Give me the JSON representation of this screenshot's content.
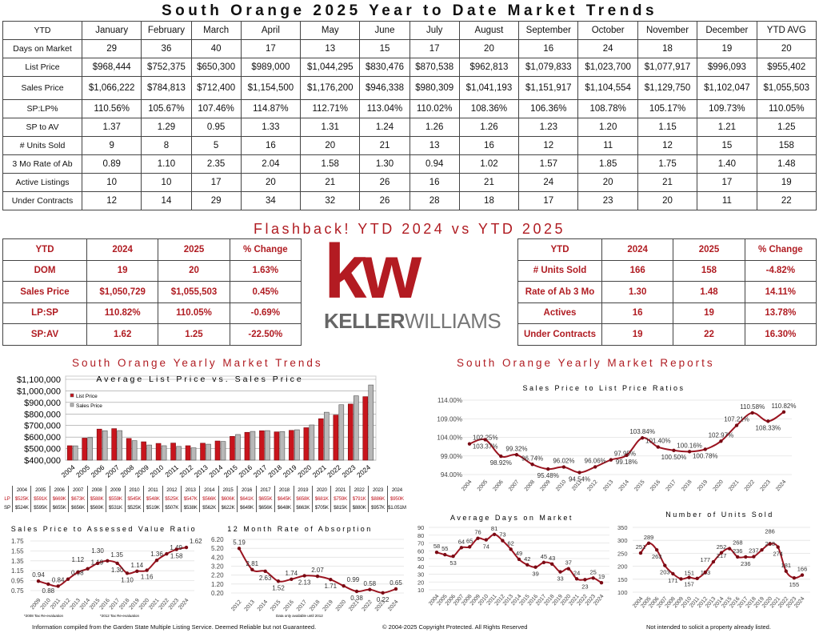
{
  "title": "South Orange 2025 Year to Date Market Trends",
  "main_table": {
    "header": [
      "YTD",
      "January",
      "February",
      "March",
      "April",
      "May",
      "June",
      "July",
      "August",
      "September",
      "October",
      "November",
      "December",
      "YTD AVG"
    ],
    "rows": [
      [
        "Days on Market",
        "29",
        "36",
        "40",
        "17",
        "13",
        "15",
        "17",
        "20",
        "16",
        "24",
        "18",
        "19",
        "20"
      ],
      [
        "List Price",
        "$968,444",
        "$752,375",
        "$650,300",
        "$989,000",
        "$1,044,295",
        "$830,476",
        "$870,538",
        "$962,813",
        "$1,079,833",
        "$1,023,700",
        "$1,077,917",
        "$996,093",
        "$955,402"
      ],
      [
        "Sales Price",
        "$1,066,222",
        "$784,813",
        "$712,400",
        "$1,154,500",
        "$1,176,200",
        "$946,338",
        "$980,309",
        "$1,041,193",
        "$1,151,917",
        "$1,104,554",
        "$1,129,750",
        "$1,102,047",
        "$1,055,503"
      ],
      [
        "SP:LP%",
        "110.56%",
        "105.67%",
        "107.46%",
        "114.87%",
        "112.71%",
        "113.04%",
        "110.02%",
        "108.36%",
        "106.36%",
        "108.78%",
        "105.17%",
        "109.73%",
        "110.05%"
      ],
      [
        "SP to AV",
        "1.37",
        "1.29",
        "0.95",
        "1.33",
        "1.31",
        "1.24",
        "1.26",
        "1.26",
        "1.23",
        "1.20",
        "1.15",
        "1.21",
        "1.25"
      ],
      [
        "# Units Sold",
        "9",
        "8",
        "5",
        "16",
        "20",
        "21",
        "13",
        "16",
        "12",
        "11",
        "12",
        "15",
        "158"
      ],
      [
        "3 Mo Rate of Ab",
        "0.89",
        "1.10",
        "2.35",
        "2.04",
        "1.58",
        "1.30",
        "0.94",
        "1.02",
        "1.57",
        "1.85",
        "1.75",
        "1.40",
        "1.48"
      ],
      [
        "Active Listings",
        "10",
        "10",
        "17",
        "20",
        "21",
        "26",
        "16",
        "21",
        "24",
        "20",
        "21",
        "17",
        "19"
      ],
      [
        "Under Contracts",
        "12",
        "14",
        "29",
        "34",
        "32",
        "26",
        "28",
        "18",
        "17",
        "23",
        "20",
        "11",
        "22"
      ]
    ]
  },
  "flashback_title": "Flashback!  YTD 2024 vs YTD 2025",
  "compare_left": {
    "header": [
      "YTD",
      "2024",
      "2025",
      "% Change"
    ],
    "rows": [
      [
        "DOM",
        "19",
        "20",
        "1.63%"
      ],
      [
        "Sales Price",
        "$1,050,729",
        "$1,055,503",
        "0.45%"
      ],
      [
        "LP:SP",
        "110.82%",
        "110.05%",
        "-0.69%"
      ],
      [
        "SP:AV",
        "1.62",
        "1.25",
        "-22.50%"
      ]
    ]
  },
  "compare_right": {
    "header": [
      "YTD",
      "2024",
      "2025",
      "% Change"
    ],
    "rows": [
      [
        "# Units Sold",
        "166",
        "158",
        "-4.82%"
      ],
      [
        "Rate of Ab 3 Mo",
        "1.30",
        "1.48",
        "14.11%"
      ],
      [
        "Actives",
        "16",
        "19",
        "13.78%"
      ],
      [
        "Under Contracts",
        "19",
        "22",
        "16.30%"
      ]
    ]
  },
  "logo": {
    "mark": "kw",
    "name_bold": "KELLER",
    "name_light": "WILLIAMS"
  },
  "section_left_title": "South Orange Yearly Market Trends",
  "section_right_title": "South Orange Yearly Market Reports",
  "colors": {
    "accent": "#b01c22",
    "line": "#9b1420",
    "bar_sp": "#b8b8b8",
    "bar_lp": "#c8141c"
  },
  "lpsp_table": {
    "years": [
      "2004",
      "2005",
      "2006",
      "2007",
      "2008",
      "2009",
      "2010",
      "2011",
      "2012",
      "2013",
      "2014",
      "2015",
      "2016",
      "2017",
      "2018",
      "2019",
      "2020",
      "2021",
      "2022",
      "2023",
      "2024"
    ],
    "lp_label": "LP",
    "sp_label": "SP",
    "lp": [
      "$525K",
      "$591K",
      "$669K",
      "$673K",
      "$588K",
      "$559K",
      "$545K",
      "$548K",
      "$525K",
      "$547K",
      "$566K",
      "$606K",
      "$641K",
      "$655K",
      "$645K",
      "$658K",
      "$681K",
      "$759K",
      "$791K",
      "$886K",
      "$950K"
    ],
    "sp": [
      "$524K",
      "$595K",
      "$655K",
      "$656K",
      "$569K",
      "$531K",
      "$525K",
      "$519K",
      "$507K",
      "$538K",
      "$562K",
      "$622K",
      "$649K",
      "$656K",
      "$648K",
      "$663K",
      "$705K",
      "$815K",
      "$880K",
      "$957K",
      "$1.051M"
    ]
  },
  "chart_data": [
    {
      "type": "bar",
      "title": "Average List Price vs. Sales Price",
      "categories": [
        "2004",
        "2005",
        "2006",
        "2007",
        "2008",
        "2009",
        "2010",
        "2011",
        "2012",
        "2013",
        "2014",
        "2015",
        "2016",
        "2017",
        "2018",
        "2019",
        "2020",
        "2021",
        "2022",
        "2023",
        "2024"
      ],
      "series": [
        {
          "name": "List Price",
          "values": [
            525000,
            591000,
            669000,
            673000,
            588000,
            559000,
            545000,
            548000,
            525000,
            547000,
            566000,
            606000,
            641000,
            655000,
            645000,
            658000,
            681000,
            759000,
            791000,
            886000,
            950000
          ]
        },
        {
          "name": "Sales Price",
          "values": [
            524000,
            595000,
            655000,
            656000,
            569000,
            531000,
            525000,
            519000,
            507000,
            538000,
            562000,
            622000,
            649000,
            656000,
            648000,
            663000,
            705000,
            815000,
            880000,
            957000,
            1051000
          ]
        }
      ],
      "yticks": [
        "$400,000",
        "$500,000",
        "$600,000",
        "$700,000",
        "$800,000",
        "$900,000",
        "$1,000,000",
        "$1,100,000"
      ],
      "ylim": [
        400000,
        1100000
      ],
      "legend": "top-left",
      "grid": true
    },
    {
      "type": "line",
      "title": "Sales Price to List Price Ratios",
      "x": [
        "2004",
        "2005",
        "2006",
        "2007",
        "2008",
        "2009",
        "2010",
        "2011",
        "2012",
        "2013",
        "2014",
        "2015",
        "2016",
        "2017",
        "2018",
        "2019",
        "2020",
        "2021",
        "2022",
        "2023",
        "2024"
      ],
      "values": [
        102.25,
        103.37,
        98.92,
        99.32,
        96.74,
        95.48,
        96.02,
        94.54,
        96.06,
        97.95,
        99.18,
        103.84,
        101.4,
        100.5,
        100.16,
        100.78,
        102.97,
        107.21,
        110.58,
        108.33,
        110.82
      ],
      "labels": [
        "102.25%",
        "103.37%",
        "98.92%",
        "99.32%",
        "96.74%",
        "95.48%",
        "96.02%",
        "94.54%",
        "96.06%",
        "97.95%",
        "99.18%",
        "103.84%",
        "101.40%",
        "100.50%",
        "100.16%",
        "100.78%",
        "102.97%",
        "107.21%",
        "110.58%",
        "108.33%",
        "110.82%"
      ],
      "yticks": [
        "94.00%",
        "99.00%",
        "104.00%",
        "109.00%",
        "114.00%"
      ],
      "ylim": [
        94,
        114
      ],
      "grid": true
    },
    {
      "type": "line",
      "title": "Sales Price to Assessed Value Ratio",
      "x": [
        "2009",
        "2010",
        "2011",
        "2012",
        "2013",
        "2014",
        "2015",
        "2016",
        "2017",
        "2018",
        "2019",
        "2020",
        "2021",
        "2022",
        "2023",
        "2024"
      ],
      "values": [
        0.94,
        0.88,
        0.84,
        0.98,
        1.12,
        1.19,
        1.3,
        1.35,
        1.3,
        1.1,
        1.14,
        1.16,
        1.36,
        1.49,
        1.58,
        1.62
      ],
      "labels": [
        "0.94",
        "0.88",
        "0.84",
        "0.98",
        "1.12",
        "1.19",
        "1.30",
        "1.35",
        "1.30",
        "1.10",
        "1.14",
        "1.16",
        "1.36",
        "1.49",
        "1.58",
        "1.62"
      ],
      "yticks": [
        "0.75",
        "0.95",
        "1.15",
        "1.35",
        "1.55",
        "1.75"
      ],
      "ylim": [
        0.75,
        1.75
      ],
      "notes": [
        "*2008 Tax Re-evaluation",
        "*2012 Tax Re-evaluation"
      ],
      "grid": true
    },
    {
      "type": "line",
      "title": "12 Month Rate of Absorption",
      "x": [
        "2012",
        "2013",
        "2014",
        "2015",
        "2016",
        "2017",
        "2018",
        "2019",
        "2020",
        "2021",
        "2022",
        "2023",
        "2024"
      ],
      "values": [
        5.19,
        2.81,
        2.63,
        1.52,
        1.74,
        2.13,
        2.07,
        1.71,
        0.99,
        0.38,
        0.58,
        0.22,
        0.65
      ],
      "labels": [
        "5.19",
        "2.81",
        "2.63",
        "1.52",
        "1.74",
        "2.13",
        "2.07",
        "1.71",
        "0.99",
        "0.38",
        "0.58",
        "0.22",
        "0.65"
      ],
      "yticks": [
        "0.20",
        "1.20",
        "2.20",
        "3.20",
        "4.20",
        "5.20",
        "6.20"
      ],
      "ylim": [
        0.2,
        6.2
      ],
      "notes": [
        "Data only available until 2012"
      ],
      "grid": true
    },
    {
      "type": "line",
      "title": "Average Days on Market",
      "x": [
        "2004",
        "2005",
        "2006",
        "2007",
        "2008",
        "2009",
        "2010",
        "2011",
        "2012",
        "2013",
        "2014",
        "2015",
        "2016",
        "2017",
        "2018",
        "2019",
        "2020",
        "2021",
        "2022",
        "2023",
        "2024"
      ],
      "values": [
        58,
        55,
        53,
        64,
        65,
        76,
        74,
        81,
        73,
        62,
        49,
        42,
        39,
        45,
        43,
        33,
        37,
        24,
        23,
        25,
        19
      ],
      "labels": [
        "58",
        "55",
        "53",
        "64",
        "65",
        "76",
        "74",
        "81",
        "73",
        "62",
        "49",
        "42",
        "39",
        "45",
        "43",
        "33",
        "37",
        "24",
        "23",
        "25",
        "19"
      ],
      "yticks": [
        "10",
        "20",
        "30",
        "40",
        "50",
        "60",
        "70",
        "80",
        "90"
      ],
      "ylim": [
        10,
        90
      ],
      "grid": true
    },
    {
      "type": "line",
      "title": "Number of Units Sold",
      "x": [
        "2004",
        "2005",
        "2006",
        "2007",
        "2008",
        "2009",
        "2010",
        "2011",
        "2012",
        "2013",
        "2014",
        "2015",
        "2016",
        "2017",
        "2018",
        "2019",
        "2020",
        "2021",
        "2022",
        "2023",
        "2024"
      ],
      "values": [
        251,
        289,
        263,
        203,
        171,
        151,
        157,
        153,
        177,
        217,
        252,
        268,
        236,
        236,
        237,
        263,
        286,
        274,
        181,
        155,
        166
      ],
      "labels": [
        "251",
        "289",
        "263",
        "203",
        "171",
        "151",
        "157",
        "153",
        "177",
        "217",
        "252",
        "268",
        "236",
        "236",
        "237",
        "263",
        "286",
        "274",
        "181",
        "155",
        "166"
      ],
      "yticks": [
        "100",
        "150",
        "200",
        "250",
        "300",
        "350"
      ],
      "ylim": [
        100,
        350
      ],
      "grid": true
    }
  ],
  "footer": {
    "left": "Information compiled from the Garden State Multiple Listing Service.  Deemed Reliable but not Guaranteed.",
    "center": "© 2004-2025 Copyright Protected.  All Rights Reserved",
    "right": "Not intended to solicit a property already listed."
  }
}
